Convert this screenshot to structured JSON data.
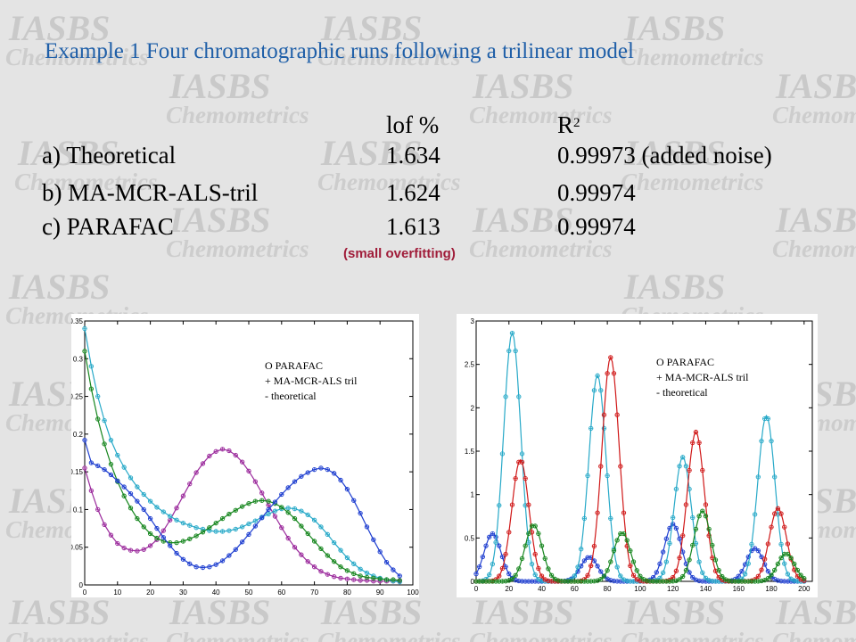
{
  "watermark": {
    "line1": "IASBS",
    "line2": "Chemometrics"
  },
  "title": "Example 1 Four chromatographic runs following a trilinear model",
  "table": {
    "headers": [
      "",
      "lof %",
      "R2"
    ],
    "rows": [
      [
        "a) Theoretical",
        "1.634",
        "0.99973 (added noise)"
      ],
      [
        "b) MA-MCR-ALS-tril",
        "1.624",
        "0.99974"
      ],
      [
        "c) PARAFAC",
        "1.613",
        "0.99974"
      ]
    ]
  },
  "note": "(small overfitting)",
  "colors": {
    "title": "#1f5fa8",
    "note": "#a01d3a",
    "blue": "#1f3fd0",
    "red": "#d01818",
    "green": "#16861e",
    "teal": "#27a9c8",
    "purple": "#9b2a9c"
  },
  "chart_data": [
    {
      "type": "line",
      "xlim": [
        0,
        100
      ],
      "ylim": [
        0,
        0.35
      ],
      "xticks": [
        0,
        10,
        20,
        30,
        40,
        50,
        60,
        70,
        80,
        90,
        100
      ],
      "yticks": [
        0,
        0.05,
        0.1,
        0.15,
        0.2,
        0.25,
        0.3,
        0.35
      ],
      "legend": [
        "O PARAFAC",
        "+ MA-MCR-ALS tril",
        "- theoretical"
      ],
      "legend_position": "top-right",
      "x": [
        0,
        2,
        4,
        6,
        8,
        10,
        12,
        14,
        16,
        18,
        20,
        22,
        24,
        26,
        28,
        30,
        32,
        34,
        36,
        38,
        40,
        42,
        44,
        46,
        48,
        50,
        52,
        54,
        56,
        58,
        60,
        62,
        64,
        66,
        68,
        70,
        72,
        74,
        76,
        78,
        80,
        82,
        84,
        86,
        88,
        90,
        92,
        94,
        96
      ],
      "series": [
        {
          "color": "#9b2a9c",
          "values": [
            0.155,
            0.125,
            0.1,
            0.08,
            0.066,
            0.055,
            0.049,
            0.046,
            0.045,
            0.047,
            0.052,
            0.06,
            0.072,
            0.086,
            0.102,
            0.118,
            0.134,
            0.149,
            0.161,
            0.171,
            0.177,
            0.18,
            0.178,
            0.172,
            0.163,
            0.151,
            0.137,
            0.122,
            0.106,
            0.091,
            0.076,
            0.062,
            0.05,
            0.04,
            0.031,
            0.024,
            0.018,
            0.014,
            0.011,
            0.009,
            0.008,
            0.007,
            0.006,
            0.006,
            0.005,
            0.005,
            0.005,
            0.005,
            0.005
          ]
        },
        {
          "color": "#27a9c8",
          "values": [
            0.34,
            0.29,
            0.25,
            0.218,
            0.192,
            0.172,
            0.156,
            0.142,
            0.13,
            0.12,
            0.111,
            0.103,
            0.097,
            0.091,
            0.086,
            0.082,
            0.079,
            0.076,
            0.074,
            0.072,
            0.071,
            0.071,
            0.072,
            0.074,
            0.077,
            0.081,
            0.085,
            0.09,
            0.094,
            0.098,
            0.101,
            0.102,
            0.101,
            0.098,
            0.093,
            0.086,
            0.077,
            0.067,
            0.056,
            0.046,
            0.036,
            0.028,
            0.021,
            0.016,
            0.012,
            0.009,
            0.007,
            0.005,
            0.004
          ]
        },
        {
          "color": "#16861e",
          "values": [
            0.31,
            0.26,
            0.22,
            0.187,
            0.16,
            0.137,
            0.118,
            0.102,
            0.088,
            0.077,
            0.068,
            0.062,
            0.058,
            0.056,
            0.056,
            0.058,
            0.061,
            0.065,
            0.07,
            0.076,
            0.082,
            0.088,
            0.094,
            0.099,
            0.104,
            0.108,
            0.111,
            0.112,
            0.111,
            0.108,
            0.103,
            0.096,
            0.088,
            0.078,
            0.068,
            0.058,
            0.048,
            0.039,
            0.031,
            0.024,
            0.019,
            0.015,
            0.012,
            0.01,
            0.009,
            0.008,
            0.007,
            0.007,
            0.006
          ]
        },
        {
          "color": "#1f3fd0",
          "values": [
            0.192,
            0.162,
            0.158,
            0.153,
            0.146,
            0.138,
            0.13,
            0.121,
            0.111,
            0.1,
            0.088,
            0.075,
            0.063,
            0.052,
            0.042,
            0.034,
            0.028,
            0.024,
            0.023,
            0.024,
            0.027,
            0.032,
            0.039,
            0.047,
            0.057,
            0.067,
            0.078,
            0.089,
            0.1,
            0.11,
            0.12,
            0.129,
            0.137,
            0.144,
            0.149,
            0.153,
            0.155,
            0.153,
            0.148,
            0.139,
            0.127,
            0.112,
            0.095,
            0.077,
            0.06,
            0.044,
            0.03,
            0.02,
            0.012
          ]
        }
      ]
    },
    {
      "type": "line",
      "xlim": [
        0,
        205
      ],
      "ylim": [
        0,
        3
      ],
      "xticks": [
        0,
        20,
        40,
        60,
        80,
        100,
        120,
        140,
        160,
        180,
        200
      ],
      "yticks": [
        0,
        0.5,
        1,
        1.5,
        2,
        2.5,
        3
      ],
      "legend": [
        "O PARAFAC",
        "+ MA-MCR-ALS tril",
        "- theoretical"
      ],
      "legend_position": "top-right",
      "series": [
        {
          "color": "#1f3fd0",
          "peaks": [
            [
              10,
              0.55
            ],
            [
              69,
              0.28
            ],
            [
              120,
              0.66
            ],
            [
              170,
              0.38
            ]
          ]
        },
        {
          "color": "#27a9c8",
          "peaks": [
            [
              22,
              2.86
            ],
            [
              74,
              2.37
            ],
            [
              126,
              1.43
            ],
            [
              177,
              1.91
            ]
          ]
        },
        {
          "color": "#d01818",
          "peaks": [
            [
              27,
              1.4
            ],
            [
              82,
              2.58
            ],
            [
              134,
              1.72
            ],
            [
              184,
              0.84
            ]
          ]
        },
        {
          "color": "#16861e",
          "peaks": [
            [
              35,
              0.65
            ],
            [
              89,
              0.56
            ],
            [
              138,
              0.81
            ],
            [
              189,
              0.32
            ]
          ]
        }
      ]
    }
  ]
}
